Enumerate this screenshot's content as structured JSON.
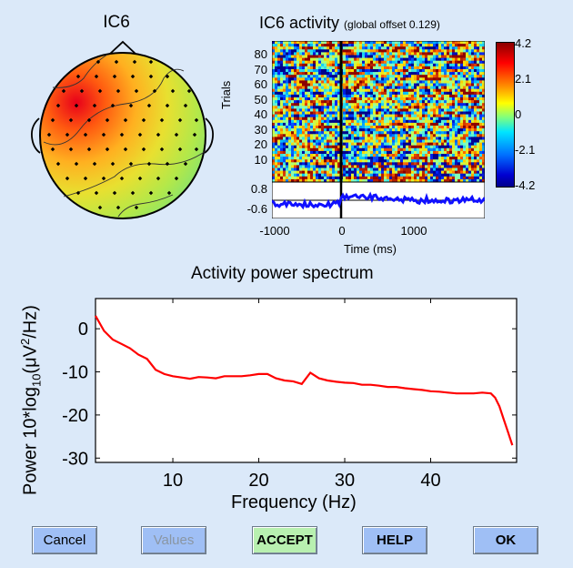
{
  "topo": {
    "title": "IC6"
  },
  "erpimage": {
    "title": "IC6 activity",
    "subtitle": "(global offset 0.129)",
    "ylabel": "Trials",
    "trial_ticks": [
      "80",
      "70",
      "60",
      "50",
      "40",
      "30",
      "20",
      "10"
    ],
    "colorbar_ticks": [
      "4.2",
      "2.1",
      "0",
      "-2.1",
      "-4.2"
    ],
    "erp_ticks": [
      "0.8",
      "-0.6"
    ],
    "time_ticks": [
      "-1000",
      "0",
      "1000"
    ],
    "xlabel": "Time (ms)"
  },
  "chart_data": {
    "type": "line",
    "title": "Activity power spectrum",
    "xlabel": "Frequency (Hz)",
    "ylabel": "Power 10*log10(μV²/Hz)",
    "ylabel_parts": {
      "a": "Power 10*log",
      "sub": "10",
      "b": "(μV",
      "sup": "2",
      "c": "/Hz)"
    },
    "xlim": [
      1,
      50
    ],
    "ylim": [
      -31,
      7
    ],
    "xticks": [
      10,
      20,
      30,
      40
    ],
    "yticks": [
      0,
      -10,
      -20,
      -30
    ],
    "line_color": "#ff0000",
    "x": [
      1,
      2,
      3,
      4,
      5,
      6,
      7,
      8,
      9,
      10,
      11,
      12,
      13,
      14,
      15,
      16,
      17,
      18,
      19,
      20,
      21,
      22,
      23,
      24,
      25,
      26,
      27,
      28,
      29,
      30,
      31,
      32,
      33,
      34,
      35,
      36,
      37,
      38,
      39,
      40,
      41,
      42,
      43,
      44,
      45,
      46,
      47,
      47.5,
      48,
      48.5,
      49,
      49.5
    ],
    "y": [
      3,
      -0.5,
      -2.5,
      -3.5,
      -4.5,
      -6,
      -7,
      -9.5,
      -10.5,
      -11,
      -11.3,
      -11.6,
      -11.2,
      -11.3,
      -11.5,
      -11,
      -11,
      -11,
      -10.8,
      -10.5,
      -10.5,
      -11.5,
      -12,
      -12.2,
      -12.8,
      -10.2,
      -11.5,
      -12,
      -12.3,
      -12.5,
      -12.6,
      -13,
      -13,
      -13.2,
      -13.5,
      -13.5,
      -13.8,
      -14,
      -14.2,
      -14.5,
      -14.6,
      -14.8,
      -15,
      -15,
      -15,
      -14.8,
      -15,
      -16,
      -18,
      -21,
      -24,
      -27
    ]
  },
  "buttons": {
    "cancel": "Cancel",
    "values": "Values",
    "accept": "ACCEPT",
    "help": "HELP",
    "ok": "OK"
  },
  "colors": {
    "background": "#dbe9f9",
    "cancel_bg": "#9fbff5",
    "accept_bg": "#b8f0b0",
    "values_text": "#8a96a3"
  }
}
